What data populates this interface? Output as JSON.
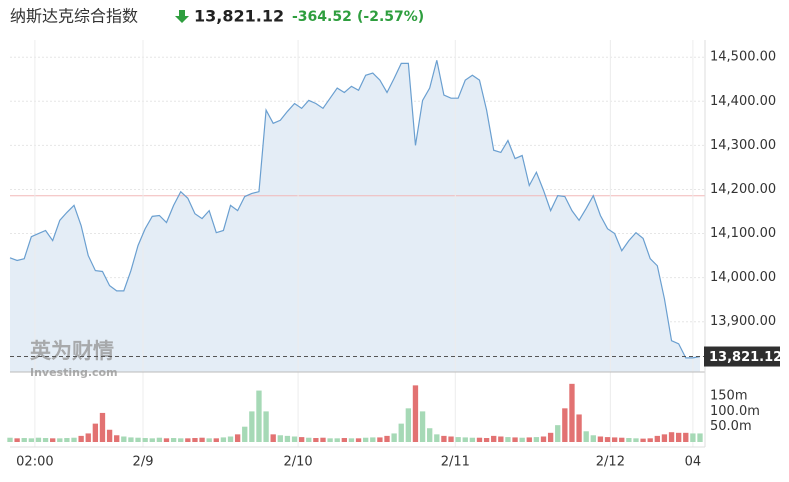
{
  "chart_data": [
    {
      "type": "area",
      "title": "纳斯达克综合指数",
      "last_price": {
        "value": 13821.12,
        "label": "13,821.12"
      },
      "change": "-364.52",
      "change_percent": "(-2.57%)",
      "reference_line": 14185.64,
      "color": "#6a9fd0",
      "fill": "#e4edf6",
      "values": [
        14045,
        14039,
        14043,
        14093,
        14100,
        14107,
        14084,
        14130,
        14148,
        14164,
        14118,
        14050,
        14016,
        14014,
        13982,
        13970,
        13970,
        14016,
        14073,
        14111,
        14139,
        14141,
        14125,
        14164,
        14195,
        14180,
        14145,
        14134,
        14152,
        14102,
        14107,
        14164,
        14152,
        14184,
        14191,
        14195,
        14380,
        14350,
        14357,
        14377,
        14395,
        14384,
        14402,
        14395,
        14384,
        14407,
        14430,
        14420,
        14434,
        14425,
        14459,
        14464,
        14448,
        14420,
        14452,
        14486,
        14486,
        14300,
        14402,
        14430,
        14493,
        14414,
        14407,
        14407,
        14448,
        14459,
        14448,
        14380,
        14289,
        14284,
        14311,
        14270,
        14277,
        14209,
        14239,
        14198,
        14152,
        14186,
        14184,
        14152,
        14130,
        14157,
        14186,
        14141,
        14111,
        14100,
        14061,
        14084,
        14102,
        14089,
        14043,
        14027,
        13952,
        13857,
        13850,
        13818,
        13818,
        13821.12
      ],
      "xlim": [
        0,
        97
      ],
      "ylim": [
        13786,
        14539
      ],
      "yticks": [
        {
          "value": 14500,
          "label": "14,500.00"
        },
        {
          "value": 14400,
          "label": "14,400.00"
        },
        {
          "value": 14300,
          "label": "14,300.00"
        },
        {
          "value": 14200,
          "label": "14,200.00"
        },
        {
          "value": 14100,
          "label": "14,100.00"
        },
        {
          "value": 14000,
          "label": "14,000.00"
        },
        {
          "value": 13900,
          "label": "13,900.00"
        }
      ],
      "grid": true,
      "watermark": [
        "英为财情",
        "Investing.com"
      ]
    },
    {
      "type": "bar",
      "up_color": "#a6d9b6",
      "down_color": "#e27272",
      "values": [
        14,
        12,
        13,
        12,
        14,
        13,
        12,
        12,
        13,
        14,
        20,
        28,
        60,
        95,
        40,
        22,
        18,
        15,
        14,
        13,
        12,
        14,
        12,
        13,
        12,
        12,
        13,
        14,
        12,
        12,
        15,
        18,
        25,
        50,
        100,
        168,
        100,
        25,
        22,
        20,
        18,
        16,
        14,
        13,
        14,
        12,
        12,
        13,
        12,
        12,
        14,
        15,
        15,
        20,
        28,
        60,
        110,
        185,
        100,
        45,
        25,
        20,
        18,
        16,
        15,
        14,
        14,
        13,
        20,
        18,
        16,
        15,
        14,
        15,
        16,
        18,
        30,
        55,
        110,
        190,
        90,
        35,
        22,
        18,
        16,
        15,
        14,
        13,
        12,
        11,
        12,
        20,
        25,
        32,
        30,
        30,
        28,
        28
      ],
      "xlim": [
        0,
        97
      ],
      "xticks": [
        {
          "value": 3.5,
          "label": "02:00"
        },
        {
          "value": 18.7,
          "label": "2/9"
        },
        {
          "value": 40.5,
          "label": "2/10"
        },
        {
          "value": 62.6,
          "label": "2/11"
        },
        {
          "value": 84.4,
          "label": "2/12"
        },
        {
          "value": 96,
          "label": "04"
        }
      ],
      "ylim": [
        0,
        196
      ],
      "yticks": [
        {
          "value": 150,
          "label": "150m"
        },
        {
          "value": 100,
          "label": "100.0m"
        },
        {
          "value": 50,
          "label": "50.0m"
        }
      ]
    }
  ]
}
